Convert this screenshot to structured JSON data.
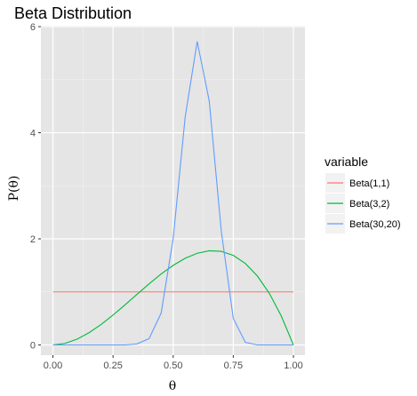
{
  "chart_data": {
    "type": "line",
    "title": "Beta Distribution",
    "xlabel": "θ",
    "ylabel": "P(θ)",
    "xlim": [
      0,
      1
    ],
    "ylim": [
      0,
      6
    ],
    "x_ticks": [
      "0.00",
      "0.25",
      "0.50",
      "0.75",
      "1.00"
    ],
    "x_tick_values": [
      0,
      0.25,
      0.5,
      0.75,
      1
    ],
    "y_ticks": [
      "0",
      "2",
      "4",
      "6"
    ],
    "y_tick_values": [
      0,
      2,
      4,
      6
    ],
    "grid": true,
    "background": "#e5e5e5",
    "legend": {
      "title": "variable",
      "position": "right"
    },
    "x": [
      0,
      0.05,
      0.1,
      0.15,
      0.2,
      0.25,
      0.3,
      0.35,
      0.4,
      0.45,
      0.5,
      0.55,
      0.6,
      0.65,
      0.7,
      0.75,
      0.8,
      0.85,
      0.9,
      0.95,
      1
    ],
    "series": [
      {
        "name": "Beta(1,1)",
        "color": "#f8766d",
        "values": [
          1,
          1,
          1,
          1,
          1,
          1,
          1,
          1,
          1,
          1,
          1,
          1,
          1,
          1,
          1,
          1,
          1,
          1,
          1,
          1,
          1
        ]
      },
      {
        "name": "Beta(3,2)",
        "color": "#00ba38",
        "values": [
          0,
          0.029,
          0.108,
          0.23,
          0.384,
          0.563,
          0.756,
          0.955,
          1.152,
          1.337,
          1.5,
          1.634,
          1.728,
          1.775,
          1.764,
          1.688,
          1.536,
          1.301,
          0.972,
          0.542,
          0
        ]
      },
      {
        "name": "Beta(30,20)",
        "color": "#619cff",
        "values": [
          0,
          0,
          0,
          0,
          0,
          0,
          0,
          0.02,
          0.12,
          0.6,
          2.0,
          4.3,
          5.72,
          4.6,
          2.15,
          0.5,
          0.05,
          0,
          0,
          0,
          0
        ]
      }
    ]
  }
}
